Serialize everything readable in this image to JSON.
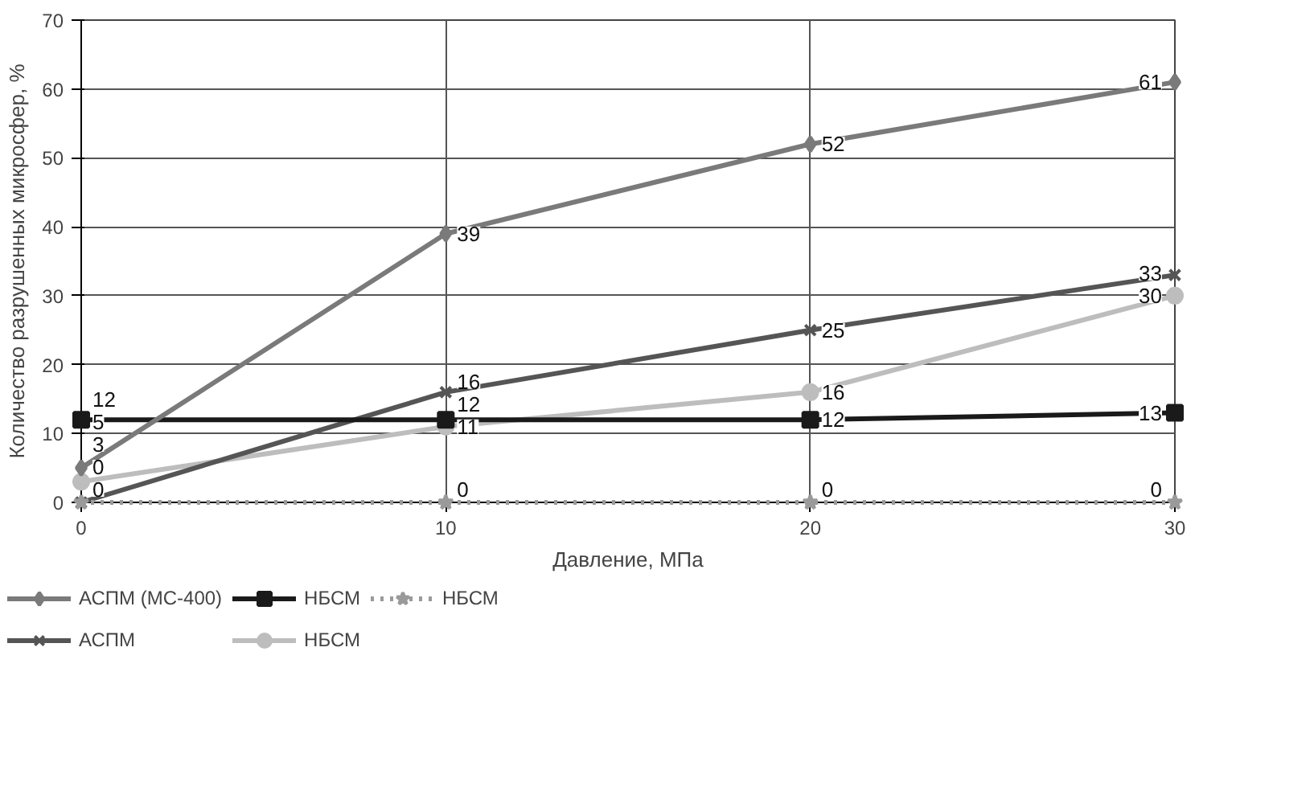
{
  "chart_data": {
    "type": "line",
    "xlabel": "Давление, МПа",
    "ylabel": "Количество разрушенных микросфер, %",
    "x": [
      0,
      10,
      20,
      30
    ],
    "xlim": [
      0,
      30
    ],
    "xticks": [
      0,
      10,
      20,
      30
    ],
    "ylim": [
      0,
      70
    ],
    "yticks": [
      0,
      10,
      20,
      30,
      40,
      50,
      60,
      70
    ],
    "grid": true,
    "legend": "bottom",
    "data_labels": true,
    "series": [
      {
        "name": "АСПМ (МС-400)",
        "color": "#7a7a7a",
        "values": [
          5,
          39,
          52,
          61
        ],
        "marker": "diamond",
        "line_style": "solid"
      },
      {
        "name": "НБСМ",
        "color": "#1a1a1a",
        "values": [
          12,
          12,
          12,
          13
        ],
        "marker": "square",
        "line_style": "solid"
      },
      {
        "name": "НБСМ",
        "color": "#9a9a9a",
        "values": [
          0,
          0,
          0,
          0
        ],
        "marker": "star",
        "line_style": "dotted"
      },
      {
        "name": "АСПМ",
        "color": "#555555",
        "values": [
          0,
          16,
          25,
          33
        ],
        "marker": "cross",
        "line_style": "solid"
      },
      {
        "name": "НБСМ",
        "color": "#bdbdbd",
        "values": [
          3,
          11,
          16,
          30
        ],
        "marker": "circle",
        "line_style": "solid"
      }
    ]
  }
}
